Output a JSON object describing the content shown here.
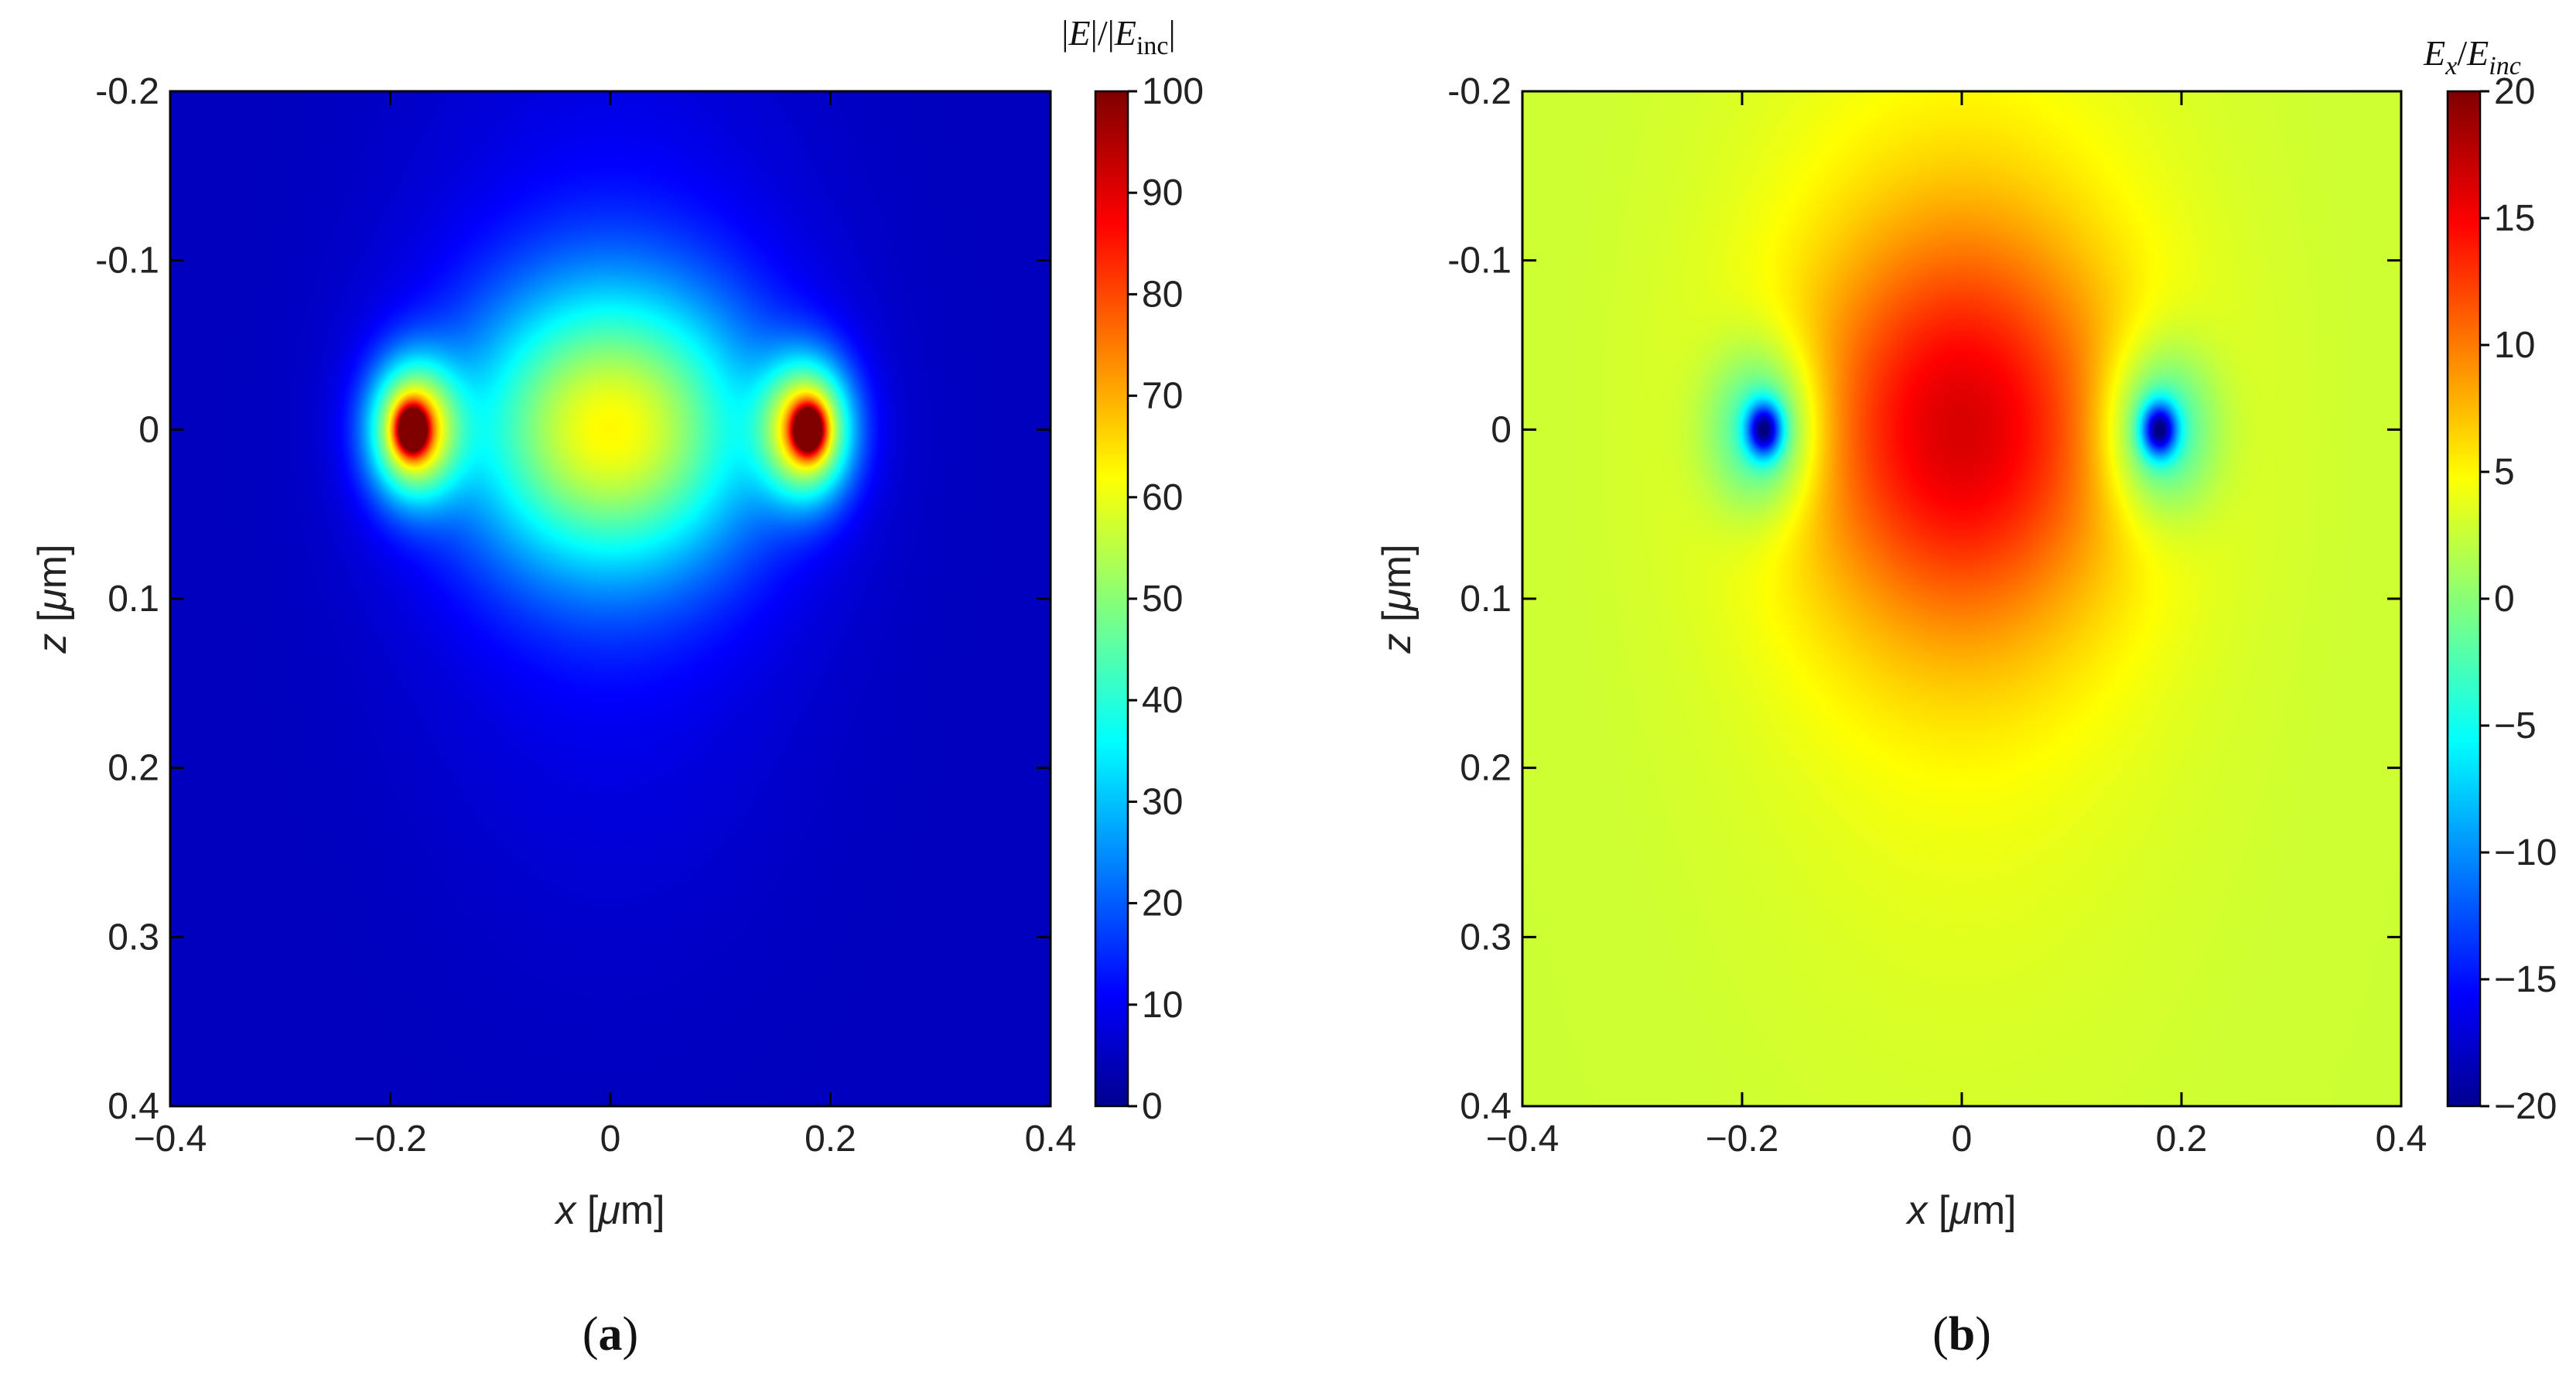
{
  "chart_data": [
    {
      "type": "heatmap",
      "panel": "(a)",
      "panel_parts": {
        "open": "(",
        "letter": "a",
        "close": ")"
      },
      "xlabel": {
        "var": "x",
        "unit_open": " [",
        "mu": "μ",
        "unit_rest": "m]"
      },
      "ylabel": {
        "var": "z",
        "unit_open": " [",
        "mu": "μ",
        "unit_rest": "m]"
      },
      "colorbar_title": {
        "p1": "|",
        "v1": "E",
        "p2": "|/|",
        "v2": "E",
        "sub": "inc",
        "p3": "|"
      },
      "xlim": [
        -0.4,
        0.4
      ],
      "ylim": [
        -0.2,
        0.4
      ],
      "y_inverted": true,
      "clim": [
        0,
        100
      ],
      "colormap": "jet",
      "x_ticks": [
        "−0.4",
        "−0.2",
        "0",
        "0.2",
        "0.4"
      ],
      "x_tick_values": [
        -0.4,
        -0.2,
        0,
        0.2,
        0.4
      ],
      "y_ticks": [
        "-0.2",
        "-0.1",
        "0",
        "0.1",
        "0.2",
        "0.3",
        "0.4"
      ],
      "y_tick_values": [
        -0.2,
        -0.1,
        0,
        0.1,
        0.2,
        0.3,
        0.4
      ],
      "colorbar_ticks": [
        "0",
        "10",
        "20",
        "30",
        "40",
        "50",
        "60",
        "70",
        "80",
        "90",
        "100"
      ],
      "colorbar_tick_values": [
        0,
        10,
        20,
        30,
        40,
        50,
        60,
        70,
        80,
        90,
        100
      ],
      "field": "magnitude",
      "field_features": {
        "background": 6,
        "hotspots": [
          {
            "x": -0.18,
            "z": 0,
            "value": 100
          },
          {
            "x": 0.18,
            "z": 0,
            "value": 100
          }
        ],
        "central_lobe": {
          "x": 0,
          "z": 0,
          "value": 55
        }
      }
    },
    {
      "type": "heatmap",
      "panel": "(b)",
      "panel_parts": {
        "open": "(",
        "letter": "b",
        "close": ")"
      },
      "xlabel": {
        "var": "x",
        "unit_open": " [",
        "mu": "μ",
        "unit_rest": "m]"
      },
      "ylabel": {
        "var": "z",
        "unit_open": " [",
        "mu": "μ",
        "unit_rest": "m]"
      },
      "colorbar_title": {
        "v1": "E",
        "s1": "x",
        "slash": "/",
        "v2": "E",
        "s2": "inc"
      },
      "xlim": [
        -0.4,
        0.4
      ],
      "ylim": [
        -0.2,
        0.4
      ],
      "y_inverted": true,
      "clim": [
        -20,
        20
      ],
      "colormap": "jet",
      "x_ticks": [
        "−0.4",
        "−0.2",
        "0",
        "0.2",
        "0.4"
      ],
      "x_tick_values": [
        -0.4,
        -0.2,
        0,
        0.2,
        0.4
      ],
      "y_ticks": [
        "-0.2",
        "-0.1",
        "0",
        "0.1",
        "0.2",
        "0.3",
        "0.4"
      ],
      "y_tick_values": [
        -0.2,
        -0.1,
        0,
        0.1,
        0.2,
        0.3,
        0.4
      ],
      "colorbar_ticks": [
        "−20",
        "−15",
        "−10",
        "−5",
        "0",
        "5",
        "10",
        "15",
        "20"
      ],
      "colorbar_tick_values": [
        -20,
        -15,
        -10,
        -5,
        0,
        5,
        10,
        15,
        20
      ],
      "field": "signed",
      "field_features": {
        "background": 3,
        "minima": [
          {
            "x": -0.18,
            "z": 0,
            "value": -20
          },
          {
            "x": 0.18,
            "z": 0,
            "value": -20
          }
        ],
        "central_lobe": {
          "x": 0,
          "z": 0,
          "value": 14
        }
      }
    }
  ]
}
